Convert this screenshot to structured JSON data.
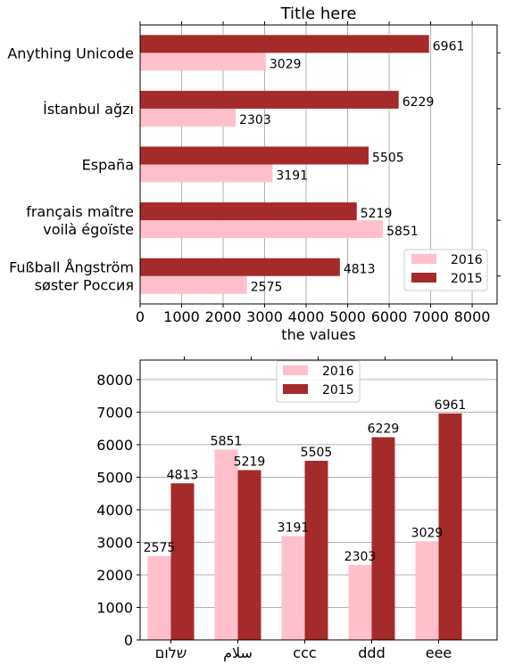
{
  "chart_data": [
    {
      "type": "bar",
      "orientation": "horizontal",
      "title": "Title here",
      "xlabel": "the values",
      "ylabel": "",
      "categories": [
        "Fußball Ångström\nsøster Россия",
        "français maître\nvoilà égoïste",
        "España",
        "İstanbul ağzı",
        "Anything Unicode"
      ],
      "series": [
        {
          "name": "2016",
          "values": [
            2575,
            5851,
            3191,
            2303,
            3029
          ],
          "color": "#ffc0cb"
        },
        {
          "name": "2015",
          "values": [
            4813,
            5219,
            5505,
            6229,
            6961
          ],
          "color": "#a52a2a"
        }
      ],
      "xlim": [
        0,
        8600
      ],
      "xticks": [
        0,
        1000,
        2000,
        3000,
        4000,
        5000,
        6000,
        7000,
        8000
      ],
      "grid": "x",
      "legend": {
        "position": "bottom-right",
        "entries": [
          "2016",
          "2015"
        ]
      }
    },
    {
      "type": "bar",
      "orientation": "vertical",
      "title": "",
      "xlabel": "",
      "ylabel": "",
      "categories": [
        "שלום",
        "سلام",
        "ccc",
        "ddd",
        "eee"
      ],
      "series": [
        {
          "name": "2016",
          "values": [
            2575,
            5851,
            3191,
            2303,
            3029
          ],
          "color": "#ffc0cb"
        },
        {
          "name": "2015",
          "values": [
            4813,
            5219,
            5505,
            6229,
            6961
          ],
          "color": "#a52a2a"
        }
      ],
      "ylim": [
        0,
        8600
      ],
      "yticks": [
        0,
        1000,
        2000,
        3000,
        4000,
        5000,
        6000,
        7000,
        8000
      ],
      "grid": "y",
      "legend": {
        "position": "top-center",
        "entries": [
          "2016",
          "2015"
        ]
      }
    }
  ]
}
